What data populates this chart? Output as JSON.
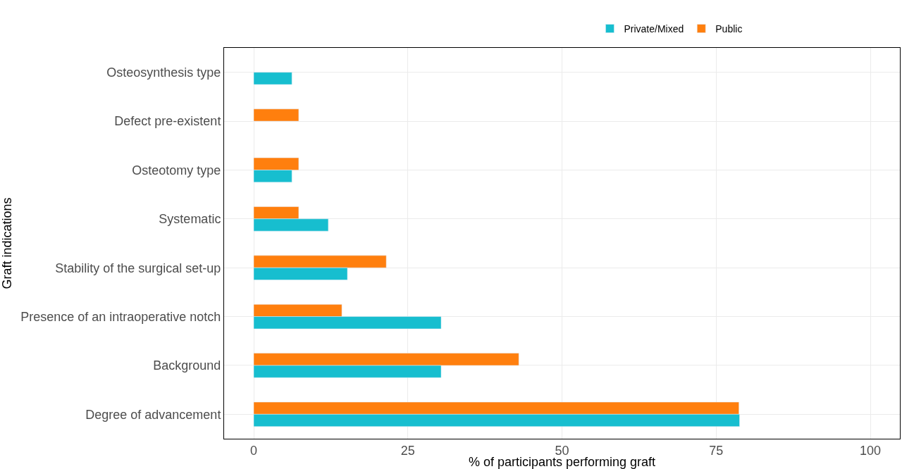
{
  "chart_data": {
    "type": "bar",
    "orientation": "horizontal",
    "xlabel": "% of participants performing graft",
    "ylabel": "Graft indications",
    "categories": [
      "Osteosynthesis type",
      "Defect pre-existent",
      "Osteotomy type",
      "Systematic",
      "Stability of the surgical set-up",
      "Presence of an intraoperative notch",
      "Background",
      "Degree of advancement"
    ],
    "series": [
      {
        "name": "Private/Mixed",
        "color": "#17becf",
        "values": [
          6.2,
          null,
          6.2,
          12.1,
          15.2,
          30.4,
          30.4,
          78.8
        ]
      },
      {
        "name": "Public",
        "color": "#ff7f0e",
        "values": [
          null,
          7.3,
          7.3,
          7.3,
          21.5,
          14.3,
          43.0,
          78.7
        ]
      }
    ],
    "xlim": [
      -4.8,
      104.8
    ],
    "xticks": [
      0,
      25,
      50,
      75,
      100
    ],
    "grid": true,
    "legend": "top"
  }
}
